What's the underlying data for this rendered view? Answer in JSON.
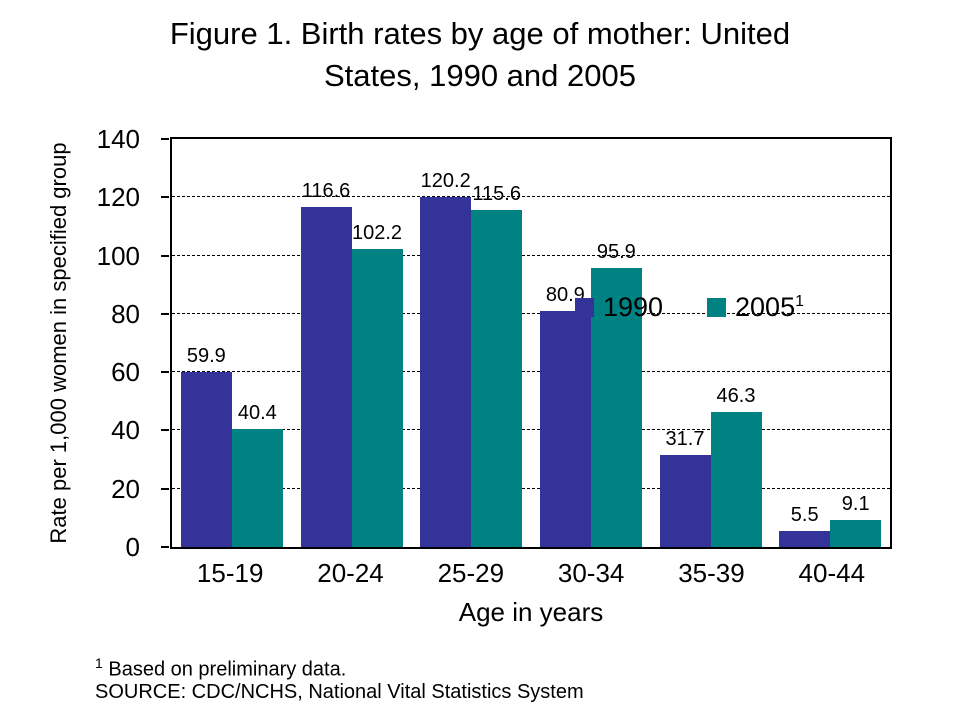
{
  "title": {
    "line1": "Figure 1. Birth rates by age of mother: United",
    "line2": "States, 1990 and 2005"
  },
  "chart_data": {
    "type": "bar",
    "title": "Figure 1. Birth rates by age of mother: United States, 1990 and 2005",
    "categories": [
      "15-19",
      "20-24",
      "25-29",
      "30-34",
      "35-39",
      "40-44"
    ],
    "series": [
      {
        "name": "1990",
        "superscript": "",
        "color": "#333399",
        "values": [
          59.9,
          116.6,
          120.2,
          80.9,
          31.7,
          5.5
        ]
      },
      {
        "name": "2005",
        "superscript": "1",
        "color": "#008282",
        "values": [
          40.4,
          102.2,
          115.6,
          95.9,
          46.3,
          9.1
        ]
      }
    ],
    "xlabel": "Age in years",
    "ylabel": "Rate per 1,000 women in specified group",
    "ylim": [
      0,
      140
    ],
    "ytick_step": 20,
    "yticks": [
      0,
      20,
      40,
      60,
      80,
      100,
      120,
      140
    ],
    "grid": "horizontal-dashed",
    "legend_position": "top-right",
    "data_labels": true
  },
  "footnotes": {
    "marker": "1",
    "note": " Based on preliminary data.",
    "source": "SOURCE: CDC/NCHS, National Vital Statistics System"
  }
}
